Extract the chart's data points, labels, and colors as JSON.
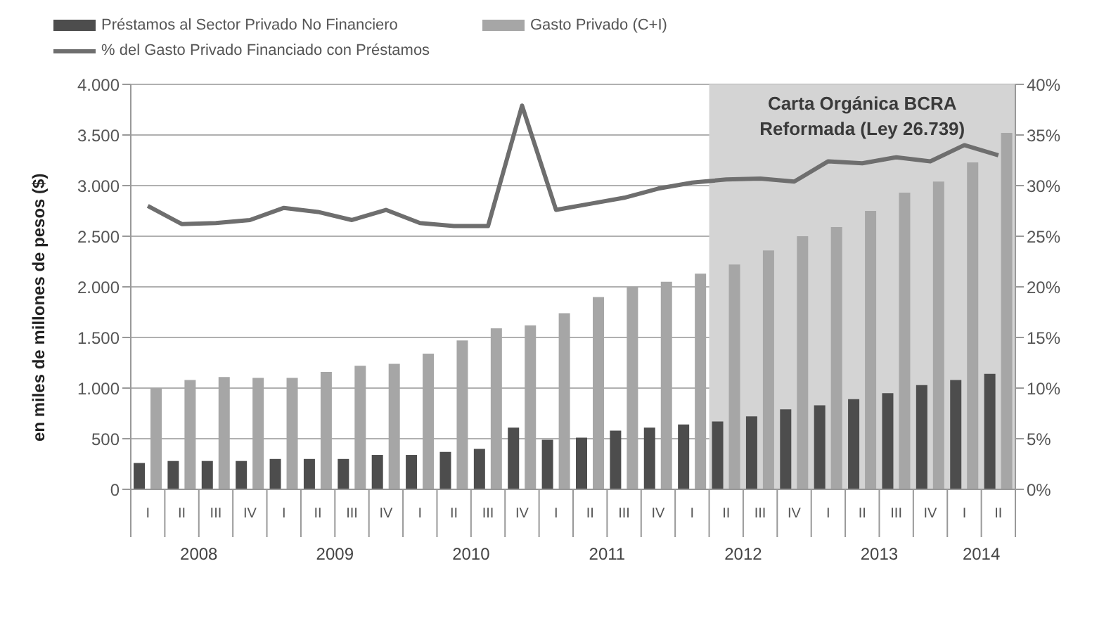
{
  "chart_data": {
    "type": "bar",
    "ylabel": "en miles de millones de pesos ($)",
    "categories": [
      "I",
      "II",
      "III",
      "IV",
      "I",
      "II",
      "III",
      "IV",
      "I",
      "II",
      "III",
      "IV",
      "I",
      "II",
      "III",
      "IV",
      "I",
      "II",
      "III",
      "IV",
      "I",
      "II",
      "III",
      "IV",
      "I",
      "II"
    ],
    "series": [
      {
        "name": "Préstamos al Sector Privado No Financiero",
        "color": "#4d4d4d",
        "values": [
          260,
          280,
          280,
          280,
          300,
          300,
          300,
          340,
          340,
          370,
          400,
          610,
          490,
          510,
          580,
          610,
          640,
          670,
          720,
          790,
          830,
          890,
          950,
          1030,
          1080,
          1140
        ]
      },
      {
        "name": "Gasto Privado (C+I)",
        "color": "#a6a6a6",
        "values": [
          1000,
          1080,
          1110,
          1100,
          1100,
          1160,
          1220,
          1240,
          1340,
          1470,
          1590,
          1620,
          1740,
          1900,
          2000,
          2050,
          2130,
          2220,
          2360,
          2500,
          2590,
          2750,
          2930,
          3040,
          3230,
          3520
        ]
      },
      {
        "name": "% del Gasto Privado Financiado con Préstamos",
        "type": "line",
        "axis": "y2",
        "color": "#6e6e6e",
        "values": [
          28,
          26.2,
          26.3,
          26.6,
          27.8,
          27.4,
          26.6,
          27.6,
          26.3,
          26,
          26,
          37.9,
          27.6,
          28.2,
          28.8,
          29.7,
          30.3,
          30.6,
          30.7,
          30.4,
          32.4,
          32.2,
          32.8,
          32.4,
          34,
          33
        ]
      }
    ],
    "ylim": [
      0,
      4000
    ],
    "yticks": [
      0,
      {
        "value": 500,
        "label": "500"
      },
      {
        "value": 1000,
        "label": "1.000"
      },
      {
        "value": 1500,
        "label": "1.500"
      },
      {
        "value": 2000,
        "label": "2.000"
      },
      {
        "value": 2500,
        "label": "2.500"
      },
      {
        "value": 3000,
        "label": "3.000"
      },
      {
        "value": 3500,
        "label": "3.500"
      },
      {
        "value": 4000,
        "label": "4.000"
      }
    ],
    "y2lim": [
      0,
      40
    ],
    "y2ticks": [
      {
        "value": 0,
        "label": "0%"
      },
      {
        "value": 5,
        "label": "5%"
      },
      {
        "value": 10,
        "label": "10%"
      },
      {
        "value": 15,
        "label": "15%"
      },
      {
        "value": 20,
        "label": "20%"
      },
      {
        "value": 25,
        "label": "25%"
      },
      {
        "value": 30,
        "label": "30%"
      },
      {
        "value": 35,
        "label": "35%"
      },
      {
        "value": 40,
        "label": "40%"
      }
    ],
    "annotations": [
      "2008",
      "2009",
      "2010",
      "2011",
      "2012",
      "2013",
      "2014",
      "Carta Orgánica BCRA Reformada (Ley 26.739)"
    ],
    "grid": "y",
    "legend": "top left",
    "marker": "none",
    "line_style": "solid"
  }
}
